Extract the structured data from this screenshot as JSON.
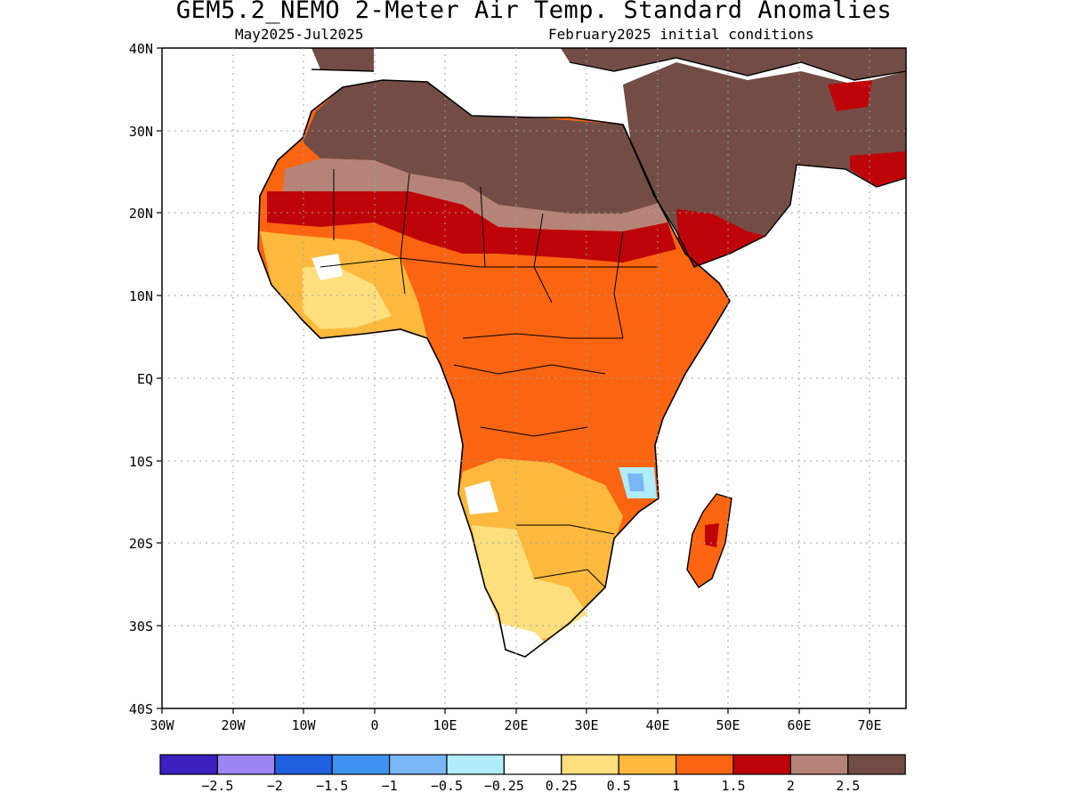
{
  "title": "GEM5.2_NEMO 2-Meter Air Temp. Standard Anomalies",
  "period": "May2025-Jul2025",
  "initial_conditions": "February2025 initial conditions",
  "y_ticks": [
    "40N",
    "30N",
    "20N",
    "10N",
    "EQ",
    "10S",
    "20S",
    "30S",
    "40S"
  ],
  "x_ticks": [
    "30W",
    "20W",
    "10W",
    "0",
    "10E",
    "20E",
    "30E",
    "40E",
    "50E",
    "60E",
    "70E"
  ],
  "colorbar": {
    "colors": [
      "#3b1fbf",
      "#9c85f2",
      "#2060e0",
      "#3f93f0",
      "#78b6f6",
      "#b0ecfb",
      "#ffffff",
      "#fddf7e",
      "#fdb93d",
      "#fb6511",
      "#be0408",
      "#b58378",
      "#734d45"
    ],
    "labels": [
      "-2.5",
      "-2",
      "-1.5",
      "-1",
      "-0.5",
      "-0.25",
      "0.25",
      "0.5",
      "1",
      "1.5",
      "2",
      "2.5"
    ]
  },
  "colors": {
    "land_outline": "#000000",
    "grid": "#a0a0a0"
  }
}
